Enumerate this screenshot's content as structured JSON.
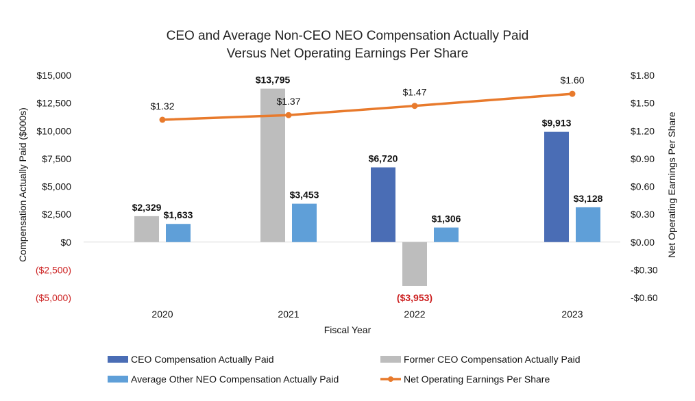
{
  "chart_data": {
    "type": "bar",
    "title": "CEO and Average Non-CEO NEO Compensation Actually Paid",
    "subtitle": "Versus Net Operating Earnings Per Share",
    "categories": [
      "2020",
      "2021",
      "2022",
      "2023"
    ],
    "xlabel": "Fiscal Year",
    "ylabel": "Compensation Actually Paid ($000s)",
    "y2label": "Net Operating Earnings Per Share",
    "ylim": [
      -5000,
      15000
    ],
    "y2lim": [
      -0.6,
      1.8
    ],
    "y_ticks": [
      {
        "value": 15000,
        "label": "$15,000"
      },
      {
        "value": 12500,
        "label": "$12,500"
      },
      {
        "value": 10000,
        "label": "$10,000"
      },
      {
        "value": 7500,
        "label": "$7,500"
      },
      {
        "value": 5000,
        "label": "$5,000"
      },
      {
        "value": 2500,
        "label": "$2,500"
      },
      {
        "value": 0,
        "label": "$0"
      },
      {
        "value": -2500,
        "label": "($2,500)"
      },
      {
        "value": -5000,
        "label": "($5,000)"
      }
    ],
    "y2_ticks": [
      {
        "value": 1.8,
        "label": "$1.80"
      },
      {
        "value": 1.5,
        "label": "$1.50"
      },
      {
        "value": 1.2,
        "label": "$1.20"
      },
      {
        "value": 0.9,
        "label": "$0.90"
      },
      {
        "value": 0.6,
        "label": "$0.60"
      },
      {
        "value": 0.3,
        "label": "$0.30"
      },
      {
        "value": 0.0,
        "label": "$0.00"
      },
      {
        "value": -0.3,
        "label": "-$0.30"
      },
      {
        "value": -0.6,
        "label": "-$0.60"
      }
    ],
    "series": [
      {
        "name": "CEO Compensation Actually Paid",
        "color": "#4a6db5",
        "values": [
          null,
          null,
          6720,
          9913
        ],
        "labels": [
          null,
          null,
          "$6,720",
          "$9,913"
        ]
      },
      {
        "name": "Former CEO Compensation Actually Paid",
        "color": "#bdbdbd",
        "values": [
          2329,
          13795,
          -3953,
          null
        ],
        "labels": [
          "$2,329",
          "$13,795",
          "($3,953)",
          null
        ]
      },
      {
        "name": "Average Other NEO Compensation Actually Paid",
        "color": "#5f9fd8",
        "values": [
          1633,
          3453,
          1306,
          3128
        ],
        "labels": [
          "$1,633",
          "$3,453",
          "$1,306",
          "$3,128"
        ]
      }
    ],
    "line_series": {
      "name": "Net Operating Earnings Per Share",
      "color": "#e87a2c",
      "axis": "right",
      "values": [
        1.32,
        1.37,
        1.47,
        1.6
      ],
      "labels": [
        "$1.32",
        "$1.37",
        "$1.47",
        "$1.60"
      ]
    },
    "legend": {
      "position": "bottom",
      "items": [
        "CEO Compensation Actually Paid",
        "Former CEO Compensation Actually Paid",
        "Average Other NEO Compensation Actually Paid",
        "Net Operating Earnings Per Share"
      ]
    }
  }
}
